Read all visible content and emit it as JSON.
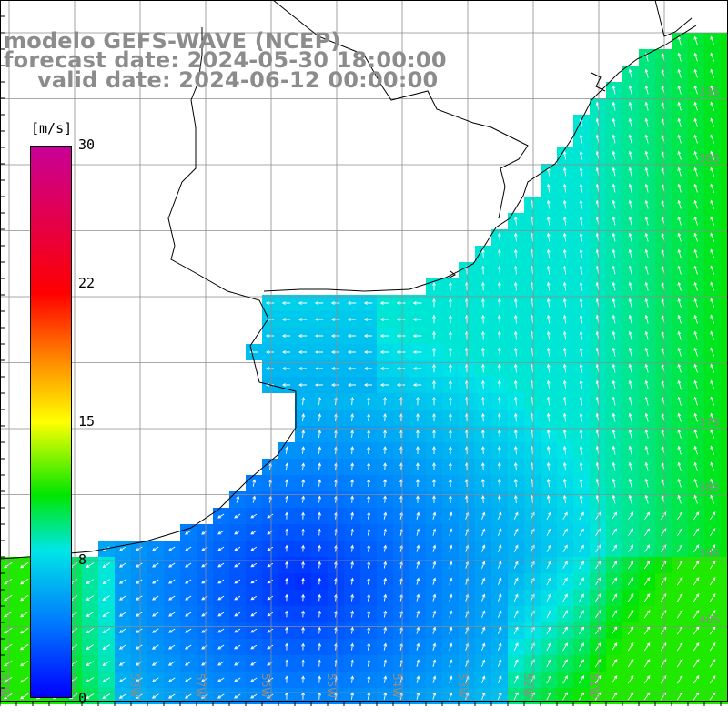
{
  "title": {
    "line1": "modelo GEFS-WAVE (NCEP)",
    "line2": "forecast date: 2024-05-30 18:00:00",
    "line3": "valid date: 2024-06-12 00:00:00"
  },
  "colorbar": {
    "units": "[m/s]",
    "ticks": [
      "30",
      "22",
      "15",
      "8",
      "0"
    ],
    "tick_values": [
      30,
      22,
      15,
      8,
      0
    ],
    "range": [
      0,
      30
    ],
    "stops": [
      {
        "value": 0,
        "color": "#0000ff"
      },
      {
        "value": 4,
        "color": "#0078ff"
      },
      {
        "value": 8,
        "color": "#00e6e6"
      },
      {
        "value": 11,
        "color": "#00e600"
      },
      {
        "value": 15,
        "color": "#ffff00"
      },
      {
        "value": 18,
        "color": "#ff9600"
      },
      {
        "value": 22,
        "color": "#ff0000"
      },
      {
        "value": 30,
        "color": "#c80096"
      }
    ]
  },
  "map": {
    "lon_labels": [
      "61W",
      "60W",
      "58W",
      "57W",
      "56W",
      "55W",
      "54W",
      "53W",
      "52W",
      "51W"
    ],
    "lat_labels": [
      "33S",
      "36S",
      "37S",
      "38S",
      "39S",
      "40S"
    ],
    "land_color": "#ffffff",
    "coast_color": "#000000",
    "grid_color": "#8c8c8c"
  }
}
